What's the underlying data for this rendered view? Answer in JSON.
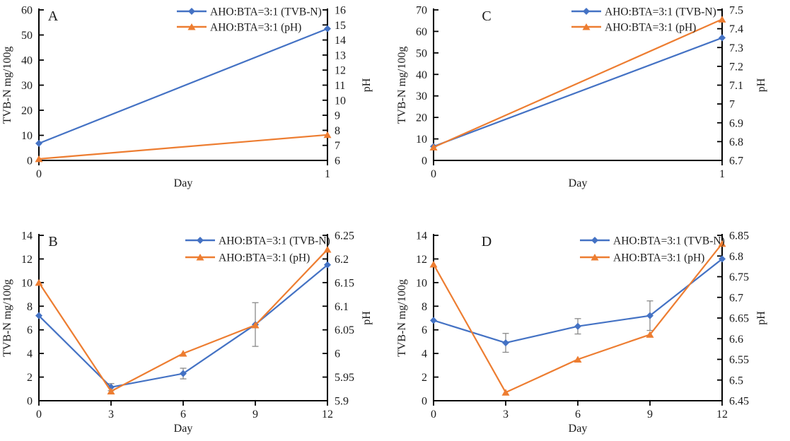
{
  "figure": {
    "description_colors": {
      "tvbn_series": "#4472C4",
      "ph_series": "#ED7D31",
      "error_bar": "#8a8a8a",
      "axis": "#000000",
      "background": "#FFFFFF"
    }
  },
  "chart_data": [
    {
      "type": "line",
      "panel_label": "A",
      "xlabel": "Day",
      "x_ticks": [
        0,
        1
      ],
      "left_axis": {
        "label": "TVB-N mg/100g",
        "min": 0,
        "max": 60,
        "step": 10
      },
      "right_axis": {
        "label": "pH",
        "min": 6,
        "max": 16,
        "step": 1
      },
      "legend_position": "top-right-inside",
      "grid": false,
      "series": [
        {
          "name": "AHO:BTA=3:1 (TVB-N)",
          "axis": "left",
          "marker": "diamond",
          "color": "#4472C4",
          "x": [
            0,
            1
          ],
          "values": [
            6.8,
            52.5
          ],
          "errors": [
            0,
            0
          ]
        },
        {
          "name": "AHO:BTA=3:1 (pH)",
          "axis": "right",
          "marker": "triangle",
          "color": "#ED7D31",
          "x": [
            0,
            1
          ],
          "values": [
            6.1,
            7.7
          ],
          "errors": [
            0,
            0
          ]
        }
      ]
    },
    {
      "type": "line",
      "panel_label": "C",
      "xlabel": "Day",
      "x_ticks": [
        0,
        1
      ],
      "left_axis": {
        "label": "TVB-N mg/100g",
        "min": 0,
        "max": 70,
        "step": 10
      },
      "right_axis": {
        "label": "pH",
        "min": 6.7,
        "max": 7.5,
        "step": 0.1
      },
      "legend_position": "top-right-inside",
      "grid": false,
      "series": [
        {
          "name": "AHO:BTA=3:1 (TVB-N)",
          "axis": "left",
          "marker": "diamond",
          "color": "#4472C4",
          "x": [
            0,
            1
          ],
          "values": [
            6.5,
            57
          ],
          "errors": [
            0,
            0
          ]
        },
        {
          "name": "AHO:BTA=3:1 (pH)",
          "axis": "right",
          "marker": "triangle",
          "color": "#ED7D31",
          "x": [
            0,
            1
          ],
          "values": [
            6.77,
            7.45
          ],
          "errors": [
            0,
            0
          ]
        }
      ]
    },
    {
      "type": "line",
      "panel_label": "B",
      "xlabel": "Day",
      "x_ticks": [
        0,
        3,
        6,
        9,
        12
      ],
      "left_axis": {
        "label": "TVB-N mg/100g",
        "min": 0,
        "max": 14,
        "step": 2
      },
      "right_axis": {
        "label": "pH",
        "min": 5.9,
        "max": 6.25,
        "step": 0.05
      },
      "legend_position": "top-right-inside",
      "grid": false,
      "series": [
        {
          "name": "AHO:BTA=3:1 (TVB-N)",
          "axis": "left",
          "marker": "diamond",
          "color": "#4472C4",
          "x": [
            0,
            3,
            6,
            9,
            12
          ],
          "values": [
            7.2,
            1.15,
            2.3,
            6.45,
            11.5
          ],
          "errors": [
            0,
            0.3,
            0.45,
            1.85,
            0
          ]
        },
        {
          "name": "AHO:BTA=3:1 (pH)",
          "axis": "right",
          "marker": "triangle",
          "color": "#ED7D31",
          "x": [
            0,
            3,
            6,
            9,
            12
          ],
          "values": [
            6.15,
            5.92,
            6.0,
            6.06,
            6.22
          ],
          "errors": [
            0,
            0,
            0,
            0,
            0
          ]
        }
      ]
    },
    {
      "type": "line",
      "panel_label": "D",
      "xlabel": "Day",
      "x_ticks": [
        0,
        3,
        6,
        9,
        12
      ],
      "left_axis": {
        "label": "TVB-N mg/100g",
        "min": 0,
        "max": 14,
        "step": 2
      },
      "right_axis": {
        "label": "pH",
        "min": 6.45,
        "max": 6.85,
        "step": 0.05
      },
      "legend_position": "top-right-inside",
      "grid": false,
      "series": [
        {
          "name": "AHO:BTA=3:1 (TVB-N)",
          "axis": "left",
          "marker": "diamond",
          "color": "#4472C4",
          "x": [
            0,
            3,
            6,
            9,
            12
          ],
          "values": [
            6.8,
            4.9,
            6.3,
            7.2,
            12.0
          ],
          "errors": [
            0,
            0.8,
            0.65,
            1.25,
            0
          ]
        },
        {
          "name": "AHO:BTA=3:1 (pH)",
          "axis": "right",
          "marker": "triangle",
          "color": "#ED7D31",
          "x": [
            0,
            3,
            6,
            9,
            12
          ],
          "values": [
            6.78,
            6.47,
            6.55,
            6.61,
            6.83
          ],
          "errors": [
            0,
            0,
            0,
            0,
            0
          ]
        }
      ]
    }
  ]
}
